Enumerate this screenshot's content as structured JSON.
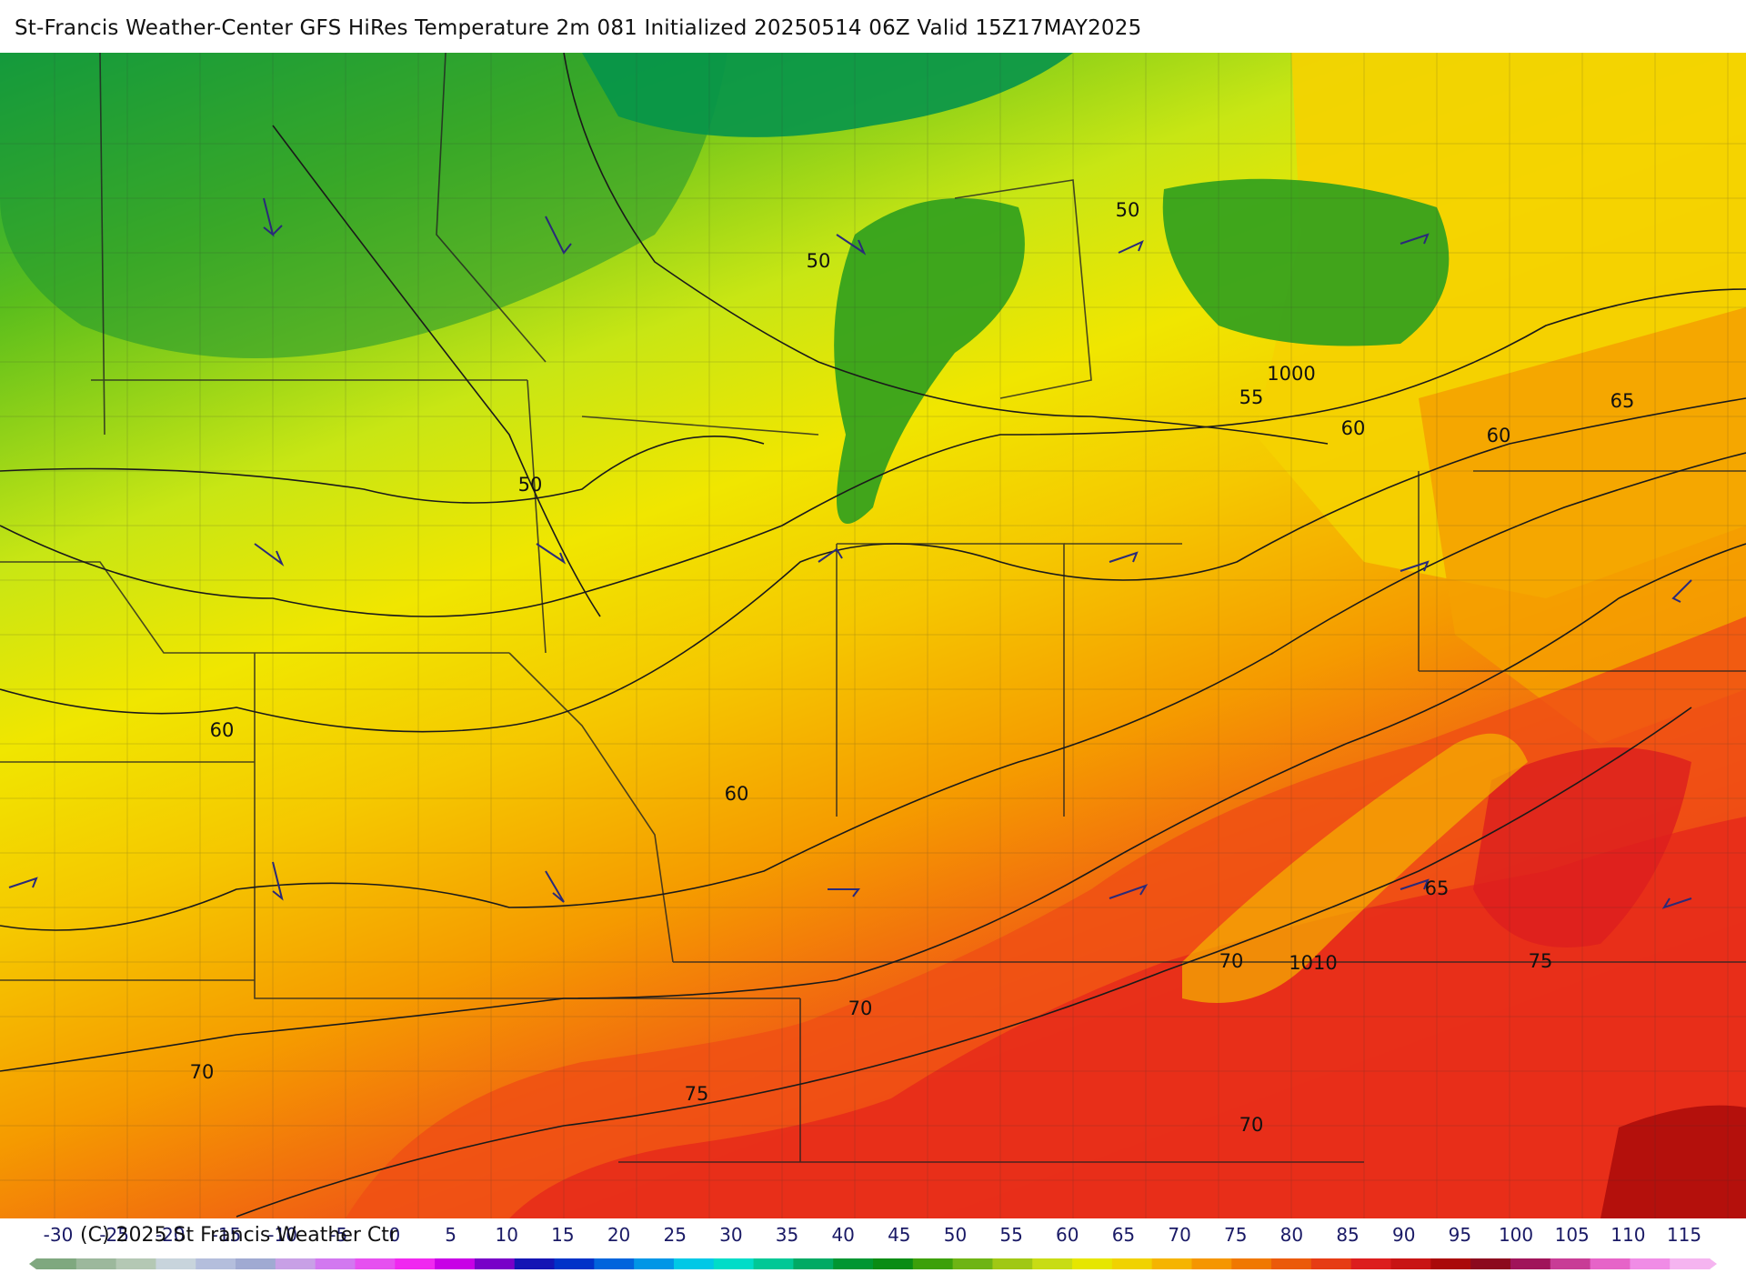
{
  "title": "St-Francis Weather-Center GFS HiRes Temperature 2m  081 Initialized 20250514 06Z Valid 15Z17MAY2025",
  "copyright": "(C) 2025 St Francis Weather Ctr",
  "map": {
    "temperature_labels": [
      "50",
      "50",
      "50",
      "55",
      "60",
      "60",
      "65",
      "60",
      "60",
      "65",
      "70",
      "70",
      "75",
      "70",
      "75",
      "70"
    ],
    "pressure_labels": [
      "1000",
      "1010"
    ],
    "colors": {
      "cold_green": "#0aa04a",
      "green": "#5cbe1c",
      "yellow_green": "#c8e614",
      "yellow": "#f0e600",
      "gold": "#f5c800",
      "orange": "#f59a00",
      "red_orange": "#f05a14",
      "red": "#e61e1e",
      "dark_red": "#b41414"
    }
  },
  "colorbar": {
    "labels": [
      "-30",
      "-25",
      "-20",
      "-15",
      "-10",
      "-5",
      "0",
      "5",
      "10",
      "15",
      "20",
      "25",
      "30",
      "35",
      "40",
      "45",
      "50",
      "55",
      "60",
      "65",
      "70",
      "75",
      "80",
      "85",
      "90",
      "95",
      "100",
      "105",
      "110",
      "115"
    ],
    "colors": [
      "#7fa87f",
      "#9cb89c",
      "#b4c8b4",
      "#c8d4dc",
      "#b4bedc",
      "#a0aad2",
      "#c8a0e6",
      "#d278f0",
      "#e650f0",
      "#f028f0",
      "#c800e6",
      "#7800c8",
      "#1414b4",
      "#0032c8",
      "#0064dc",
      "#0096e6",
      "#00c8e6",
      "#00dcc8",
      "#00c896",
      "#00aa64",
      "#009632",
      "#0a8c14",
      "#3ca00a",
      "#6eb414",
      "#a0c814",
      "#c8dc14",
      "#e6e600",
      "#f0d200",
      "#f5b400",
      "#f59600",
      "#f07800",
      "#eb5a0a",
      "#e63c14",
      "#dc1e1e",
      "#c81414",
      "#aa0a0a",
      "#8c0a1e",
      "#a0145a",
      "#c83c96",
      "#e664c8",
      "#f08ce6",
      "#f5b4f0"
    ]
  }
}
